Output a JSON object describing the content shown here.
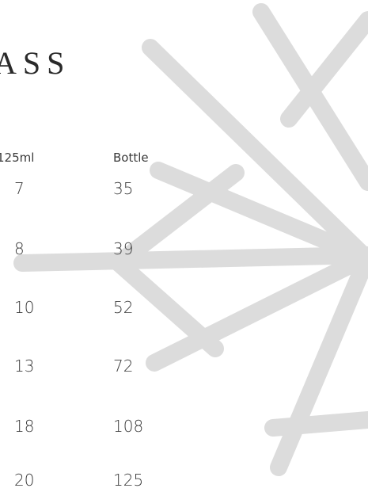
{
  "header": {
    "title": "ASS"
  },
  "table": {
    "columns": [
      "125ml",
      "Bottle"
    ],
    "rows": [
      [
        "7",
        "35"
      ],
      [
        "8",
        "39"
      ],
      [
        "10",
        "52"
      ],
      [
        "13",
        "72"
      ],
      [
        "18",
        "108"
      ],
      [
        "20",
        "125"
      ]
    ]
  }
}
